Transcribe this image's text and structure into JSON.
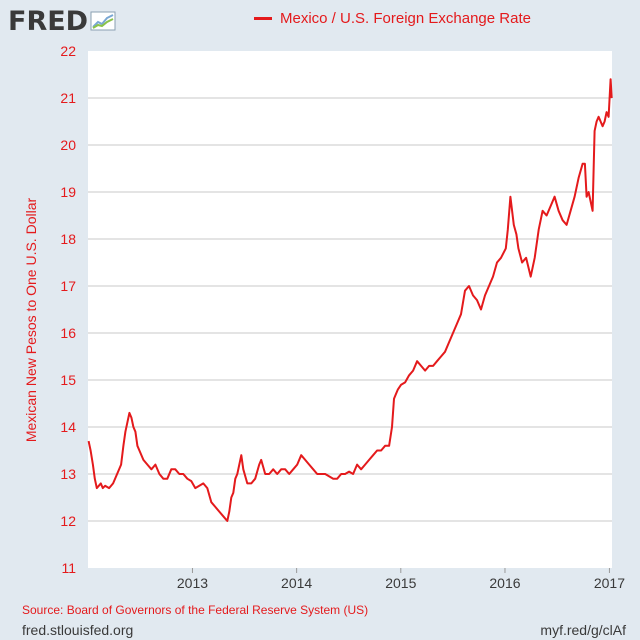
{
  "header": {
    "logo_text": "FRED"
  },
  "footer": {
    "source": "Source: Board of Governors of the Federal Reserve System (US)",
    "site": "fred.stlouisfed.org",
    "shortlink": "myf.red/g/clAf"
  },
  "colors": {
    "series": "#e41a1c",
    "background": "#e1e9f0",
    "plot_background": "#ffffff",
    "text_dark": "#3a3a3a"
  },
  "chart_data": {
    "type": "line",
    "title": "",
    "xlabel": "",
    "ylabel": "Mexican New Pesos to One U.S. Dollar",
    "ylim": [
      11,
      22
    ],
    "xlim": [
      "2012-01-01",
      "2017-01-10"
    ],
    "yticks": [
      "11",
      "12",
      "13",
      "14",
      "15",
      "16",
      "17",
      "18",
      "19",
      "20",
      "21",
      "22"
    ],
    "xticks": [
      {
        "date": "2013-01-01",
        "label": "2013"
      },
      {
        "date": "2014-01-01",
        "label": "2014"
      },
      {
        "date": "2015-01-01",
        "label": "2015"
      },
      {
        "date": "2016-01-01",
        "label": "2016"
      },
      {
        "date": "2017-01-01",
        "label": "2017"
      }
    ],
    "grid": "horizontal",
    "legend_position": "top-center",
    "series": [
      {
        "name": "Mexico / U.S. Foreign Exchange Rate",
        "x": [
          "2012-01-03",
          "2012-01-10",
          "2012-01-18",
          "2012-01-25",
          "2012-02-01",
          "2012-02-08",
          "2012-02-15",
          "2012-02-22",
          "2012-03-01",
          "2012-03-15",
          "2012-03-29",
          "2012-04-12",
          "2012-04-26",
          "2012-05-04",
          "2012-05-11",
          "2012-05-18",
          "2012-05-25",
          "2012-06-01",
          "2012-06-08",
          "2012-06-15",
          "2012-06-22",
          "2012-06-29",
          "2012-07-13",
          "2012-07-27",
          "2012-08-10",
          "2012-08-24",
          "2012-09-07",
          "2012-09-21",
          "2012-10-05",
          "2012-10-19",
          "2012-11-02",
          "2012-11-16",
          "2012-11-30",
          "2012-12-14",
          "2012-12-28",
          "2013-01-11",
          "2013-01-25",
          "2013-02-08",
          "2013-02-22",
          "2013-03-08",
          "2013-03-22",
          "2013-04-05",
          "2013-04-19",
          "2013-05-03",
          "2013-05-10",
          "2013-05-17",
          "2013-05-24",
          "2013-05-31",
          "2013-06-07",
          "2013-06-14",
          "2013-06-21",
          "2013-06-28",
          "2013-07-12",
          "2013-07-26",
          "2013-08-09",
          "2013-08-23",
          "2013-08-30",
          "2013-09-13",
          "2013-09-27",
          "2013-10-11",
          "2013-10-25",
          "2013-11-08",
          "2013-11-22",
          "2013-12-06",
          "2013-12-20",
          "2014-01-03",
          "2014-01-17",
          "2014-01-31",
          "2014-02-14",
          "2014-02-28",
          "2014-03-14",
          "2014-03-28",
          "2014-04-11",
          "2014-04-25",
          "2014-05-09",
          "2014-05-23",
          "2014-06-06",
          "2014-06-20",
          "2014-07-04",
          "2014-07-18",
          "2014-08-01",
          "2014-08-15",
          "2014-08-29",
          "2014-09-12",
          "2014-09-26",
          "2014-10-10",
          "2014-10-24",
          "2014-11-07",
          "2014-11-21",
          "2014-12-01",
          "2014-12-08",
          "2014-12-15",
          "2014-12-22",
          "2015-01-02",
          "2015-01-16",
          "2015-01-30",
          "2015-02-13",
          "2015-02-27",
          "2015-03-13",
          "2015-03-27",
          "2015-04-10",
          "2015-04-24",
          "2015-05-08",
          "2015-05-22",
          "2015-06-05",
          "2015-06-19",
          "2015-07-03",
          "2015-07-17",
          "2015-07-31",
          "2015-08-14",
          "2015-08-28",
          "2015-09-11",
          "2015-09-25",
          "2015-10-09",
          "2015-10-23",
          "2015-11-06",
          "2015-11-20",
          "2015-12-04",
          "2015-12-18",
          "2016-01-04",
          "2016-01-11",
          "2016-01-20",
          "2016-02-01",
          "2016-02-10",
          "2016-02-17",
          "2016-03-01",
          "2016-03-15",
          "2016-03-31",
          "2016-04-14",
          "2016-04-28",
          "2016-05-12",
          "2016-05-26",
          "2016-06-09",
          "2016-06-23",
          "2016-07-07",
          "2016-07-21",
          "2016-08-04",
          "2016-08-18",
          "2016-09-01",
          "2016-09-15",
          "2016-09-29",
          "2016-10-07",
          "2016-10-13",
          "2016-10-20",
          "2016-10-27",
          "2016-11-03",
          "2016-11-08",
          "2016-11-10",
          "2016-11-17",
          "2016-11-24",
          "2016-12-01",
          "2016-12-08",
          "2016-12-15",
          "2016-12-22",
          "2016-12-29",
          "2017-01-05",
          "2017-01-09"
        ],
        "values": [
          13.7,
          13.5,
          13.2,
          12.9,
          12.7,
          12.75,
          12.8,
          12.7,
          12.75,
          12.7,
          12.8,
          13.0,
          13.2,
          13.6,
          13.9,
          14.1,
          14.3,
          14.2,
          14.0,
          13.9,
          13.6,
          13.5,
          13.3,
          13.2,
          13.1,
          13.2,
          13.0,
          12.9,
          12.9,
          13.1,
          13.1,
          13.0,
          13.0,
          12.9,
          12.85,
          12.7,
          12.75,
          12.8,
          12.7,
          12.4,
          12.3,
          12.2,
          12.1,
          12.0,
          12.2,
          12.5,
          12.6,
          12.9,
          13.0,
          13.2,
          13.4,
          13.1,
          12.8,
          12.8,
          12.9,
          13.2,
          13.3,
          13.0,
          13.0,
          13.1,
          13.0,
          13.1,
          13.1,
          13.0,
          13.1,
          13.2,
          13.4,
          13.3,
          13.2,
          13.1,
          13.0,
          13.0,
          13.0,
          12.95,
          12.9,
          12.9,
          13.0,
          13.0,
          13.05,
          13.0,
          13.2,
          13.1,
          13.2,
          13.3,
          13.4,
          13.5,
          13.5,
          13.6,
          13.6,
          14.0,
          14.6,
          14.7,
          14.8,
          14.9,
          14.95,
          15.1,
          15.2,
          15.4,
          15.3,
          15.2,
          15.3,
          15.3,
          15.4,
          15.5,
          15.6,
          15.8,
          16.0,
          16.2,
          16.4,
          16.9,
          17.0,
          16.8,
          16.7,
          16.5,
          16.8,
          17.0,
          17.2,
          17.5,
          17.6,
          17.8,
          18.2,
          18.9,
          18.3,
          18.1,
          17.8,
          17.5,
          17.6,
          17.2,
          17.6,
          18.2,
          18.6,
          18.5,
          18.7,
          18.9,
          18.6,
          18.4,
          18.3,
          18.6,
          18.9,
          19.3,
          19.6,
          19.6,
          18.9,
          19.0,
          18.8,
          18.6,
          19.8,
          20.3,
          20.5,
          20.6,
          20.5,
          20.4,
          20.5,
          20.7,
          20.6,
          21.4,
          21.0
        ]
      }
    ]
  }
}
